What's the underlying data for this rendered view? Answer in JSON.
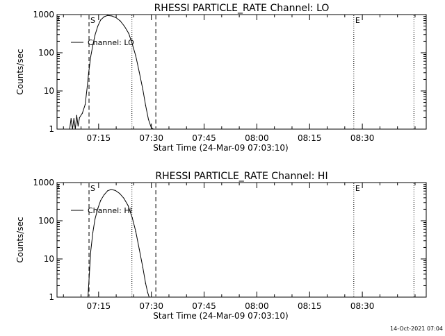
{
  "footer": {
    "timestamp": "14-Oct-2021 07:04"
  },
  "chart_data": [
    {
      "type": "line",
      "title": "RHESSI PARTICLE_RATE Channel: LO",
      "xlabel": "Start Time (24-Mar-09 07:03:10)",
      "ylabel": "Counts/sec",
      "x_unit": "minutes after 07:03:10",
      "xlim": [
        0,
        105
      ],
      "ylim": [
        1,
        1000
      ],
      "yscale": "log",
      "x_ticks": [
        {
          "x": 11.83,
          "label": "07:15"
        },
        {
          "x": 26.83,
          "label": "07:30"
        },
        {
          "x": 41.83,
          "label": "07:45"
        },
        {
          "x": 56.83,
          "label": "08:00"
        },
        {
          "x": 71.83,
          "label": "08:15"
        },
        {
          "x": 86.83,
          "label": "08:30"
        }
      ],
      "y_ticks": [
        {
          "y": 1,
          "label": "1"
        },
        {
          "y": 10,
          "label": "10"
        },
        {
          "y": 100,
          "label": "100"
        },
        {
          "y": 1000,
          "label": "1000"
        }
      ],
      "markers": [
        {
          "x": 9.1,
          "label": "S",
          "style": "dashed"
        },
        {
          "x": 28.1,
          "label": "",
          "style": "dashed"
        },
        {
          "x": 21.3,
          "label": "",
          "style": "dotted"
        },
        {
          "x": 84.4,
          "label": "E",
          "style": "dotted"
        },
        {
          "x": 101.5,
          "label": "",
          "style": "dotted"
        }
      ],
      "legend": {
        "label": "Channel: LO",
        "placement": "top-left"
      },
      "series": [
        {
          "name": "Channel: LO",
          "x": [
            3.6,
            4.0,
            4.4,
            4.8,
            5.2,
            5.6,
            6.0,
            6.4,
            7.2,
            8.0,
            8.6,
            9.0,
            9.6,
            10.2,
            10.8,
            11.6,
            12.4,
            13.4,
            14.4,
            15.6,
            16.8,
            18.0,
            19.2,
            20.4,
            21.4,
            22.4,
            23.4,
            24.4,
            25.2,
            26.0,
            26.8,
            27.4
          ],
          "y": [
            1,
            1.9,
            1,
            1.9,
            1,
            2.3,
            1.2,
            2.0,
            2.6,
            4.4,
            13,
            30,
            80,
            160,
            290,
            500,
            720,
            880,
            950,
            920,
            830,
            680,
            490,
            320,
            170,
            82,
            31,
            11,
            4.2,
            1.8,
            1.1,
            1
          ]
        }
      ]
    },
    {
      "type": "line",
      "title": "RHESSI PARTICLE_RATE Channel: HI",
      "xlabel": "Start Time (24-Mar-09 07:03:10)",
      "ylabel": "Counts/sec",
      "x_unit": "minutes after 07:03:10",
      "xlim": [
        0,
        105
      ],
      "ylim": [
        1,
        1000
      ],
      "yscale": "log",
      "x_ticks": [
        {
          "x": 11.83,
          "label": "07:15"
        },
        {
          "x": 26.83,
          "label": "07:30"
        },
        {
          "x": 41.83,
          "label": "07:45"
        },
        {
          "x": 56.83,
          "label": "08:00"
        },
        {
          "x": 71.83,
          "label": "08:15"
        },
        {
          "x": 86.83,
          "label": "08:30"
        }
      ],
      "y_ticks": [
        {
          "y": 1,
          "label": "1"
        },
        {
          "y": 10,
          "label": "10"
        },
        {
          "y": 100,
          "label": "100"
        },
        {
          "y": 1000,
          "label": "1000"
        }
      ],
      "markers": [
        {
          "x": 9.1,
          "label": "S",
          "style": "dashed"
        },
        {
          "x": 28.1,
          "label": "",
          "style": "dashed"
        },
        {
          "x": 21.3,
          "label": "",
          "style": "dotted"
        },
        {
          "x": 84.4,
          "label": "E",
          "style": "dotted"
        },
        {
          "x": 101.5,
          "label": "",
          "style": "dotted"
        }
      ],
      "legend": {
        "label": "Channel: HI",
        "placement": "top-left"
      },
      "series": [
        {
          "name": "Channel: HI",
          "x": [
            8.8,
            9.2,
            9.6,
            10.2,
            10.8,
            11.6,
            12.4,
            13.4,
            14.4,
            15.4,
            16.6,
            17.8,
            19.0,
            20.2,
            21.4,
            22.4,
            23.4,
            24.4,
            25.2,
            25.8,
            26.2
          ],
          "y": [
            1,
            4,
            16,
            50,
            110,
            210,
            340,
            480,
            610,
            660,
            620,
            520,
            390,
            250,
            120,
            52,
            18,
            6.0,
            2.3,
            1.3,
            1
          ]
        }
      ]
    }
  ]
}
